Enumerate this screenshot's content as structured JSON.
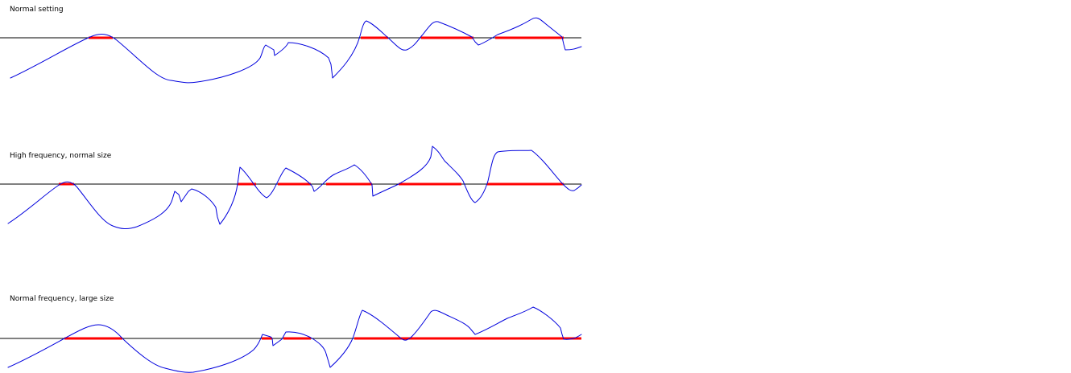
{
  "panels": [
    {
      "label": "Normal setting"
    },
    {
      "label": "High frequency, normal size"
    },
    {
      "label": "Normal frequency, large size"
    }
  ]
}
